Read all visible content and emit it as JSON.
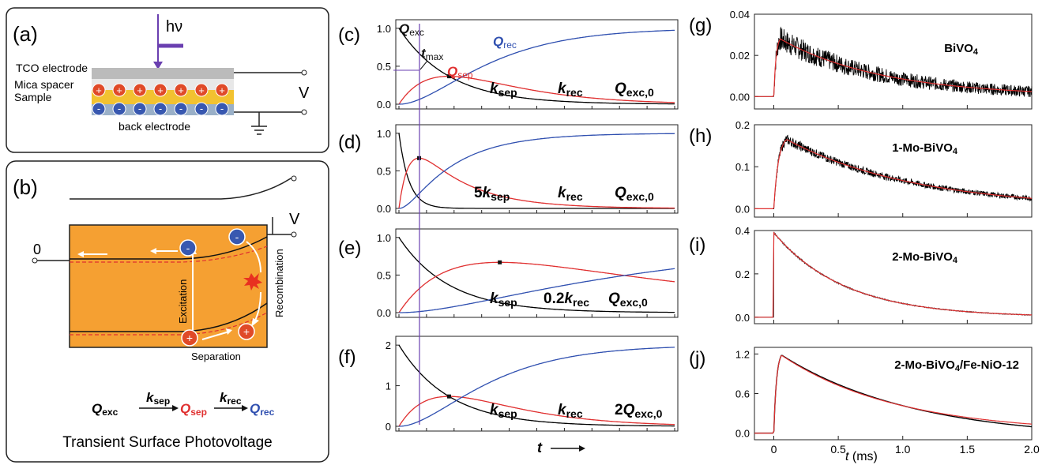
{
  "panel_a": {
    "label": "(a)",
    "hv": "hν",
    "tco": "TCO electrode",
    "mica": "Mica spacer",
    "sample": "Sample",
    "back": "back electrode",
    "v": "V"
  },
  "panel_b": {
    "label": "(b)",
    "v": "V",
    "zero": "0",
    "excitation": "Excitation",
    "recombination": "Recombination",
    "separation": "Separation",
    "scheme": {
      "q_exc": "Q",
      "q_exc_sub": "exc",
      "k_sep": "k",
      "k_sep_sub": "sep",
      "q_sep": "Q",
      "q_sep_sub": "sep",
      "k_rec": "k",
      "k_rec_sub": "rec",
      "q_rec": "Q",
      "q_rec_sub": "rec"
    },
    "caption": "Transient Surface Photovoltage"
  },
  "sim_labels": {
    "c": {
      "label": "(c)",
      "k1": "k",
      "k1s": "sep",
      "k2": "k",
      "k2s": "rec",
      "q": "Q",
      "qs": "exc,0",
      "qexc": "Q",
      "qexc_s": "exc",
      "qrec": "Q",
      "qrec_s": "rec",
      "qsep": "Q",
      "qsep_s": "sep",
      "tmax": "t",
      "tmax_s": "max"
    },
    "d": {
      "label": "(d)",
      "k1": "5k",
      "k1s": "sep",
      "k2": "k",
      "k2s": "rec",
      "q": "Q",
      "qs": "exc,0"
    },
    "e": {
      "label": "(e)",
      "k1": "k",
      "k1s": "sep",
      "k2": "0.2k",
      "k2s": "rec",
      "q": "Q",
      "qs": "exc,0"
    },
    "f": {
      "label": "(f)",
      "k1": "k",
      "k1s": "sep",
      "k2": "k",
      "k2s": "rec",
      "q": "2Q",
      "qs": "exc,0"
    },
    "xlabel": "t"
  },
  "exp_labels": {
    "g": {
      "label": "(g)",
      "sample": "BiVO",
      "sub": "4"
    },
    "h": {
      "label": "(h)",
      "sample": "1-Mo-BiVO",
      "sub": "4"
    },
    "i": {
      "label": "(i)",
      "sample": "2-Mo-BiVO",
      "sub": "4"
    },
    "j": {
      "label": "(j)",
      "sample": "2-Mo-BiVO",
      "sub": "4",
      "suffix": "/Fe-NiO-12"
    },
    "xlabel_t": "t",
    "xlabel_unit": " (ms)"
  },
  "chart_data": [
    {
      "panel": "c",
      "type": "line",
      "ylim": [
        0,
        1.05
      ],
      "yticks": [
        "0.0",
        "0.5",
        "1.0"
      ],
      "params": {
        "k_sep": 1,
        "k_rec": 1,
        "Q_exc0": 1
      },
      "series": [
        {
          "name": "Qexc",
          "color": "#000000"
        },
        {
          "name": "Qsep",
          "color": "#e03030"
        },
        {
          "name": "Qrec",
          "color": "#3050b0"
        }
      ]
    },
    {
      "panel": "d",
      "type": "line",
      "ylim": [
        0,
        1.05
      ],
      "yticks": [
        "0.0",
        "0.5",
        "1.0"
      ],
      "params": {
        "k_sep": 5,
        "k_rec": 1,
        "Q_exc0": 1
      },
      "series": [
        {
          "color": "#000000"
        },
        {
          "color": "#e03030"
        },
        {
          "color": "#3050b0"
        }
      ]
    },
    {
      "panel": "e",
      "type": "line",
      "ylim": [
        0,
        1.05
      ],
      "yticks": [
        "0.0",
        "0.5",
        "1.0"
      ],
      "params": {
        "k_sep": 1,
        "k_rec": 0.2,
        "Q_exc0": 1
      },
      "series": [
        {
          "color": "#000000"
        },
        {
          "color": "#e03030"
        },
        {
          "color": "#3050b0"
        }
      ]
    },
    {
      "panel": "f",
      "type": "line",
      "ylim": [
        0,
        2.1
      ],
      "yticks": [
        "0",
        "1",
        "2"
      ],
      "params": {
        "k_sep": 1,
        "k_rec": 1,
        "Q_exc0": 2
      },
      "series": [
        {
          "color": "#000000"
        },
        {
          "color": "#e03030"
        },
        {
          "color": "#3050b0"
        }
      ]
    },
    {
      "panel": "g",
      "type": "line",
      "xlim": [
        -0.15,
        2.0
      ],
      "ylim": [
        -0.006,
        0.04
      ],
      "yticks": [
        "0.00",
        "0.02",
        "0.04"
      ],
      "ytick_values": [
        0,
        0.02,
        0.04
      ],
      "peak": {
        "x": 0.05,
        "y": 0.028
      },
      "tau": 0.8,
      "noise": 0.006,
      "series": [
        {
          "name": "data",
          "color": "#000000"
        },
        {
          "name": "fit",
          "color": "#e03030"
        }
      ]
    },
    {
      "panel": "h",
      "type": "line",
      "xlim": [
        -0.15,
        2.0
      ],
      "ylim": [
        -0.02,
        0.2
      ],
      "yticks": [
        "0.0",
        "0.1",
        "0.2"
      ],
      "ytick_values": [
        0,
        0.1,
        0.2
      ],
      "peak": {
        "x": 0.1,
        "y": 0.165
      },
      "tau": 1.0,
      "noise": 0.012,
      "series": [
        {
          "name": "data",
          "color": "#000000"
        },
        {
          "name": "fit",
          "color": "#e03030"
        }
      ]
    },
    {
      "panel": "i",
      "type": "line",
      "xlim": [
        -0.15,
        2.0
      ],
      "ylim": [
        -0.03,
        0.4
      ],
      "yticks": [
        "0.0",
        "0.2",
        "0.4"
      ],
      "ytick_values": [
        0,
        0.2,
        0.4
      ],
      "peak": {
        "x": 0.0,
        "y": 0.39
      },
      "tau": 0.55,
      "noise": 0.004,
      "series": [
        {
          "name": "data",
          "color": "#000000"
        },
        {
          "name": "fit",
          "color": "#e03030"
        }
      ]
    },
    {
      "panel": "j",
      "type": "line",
      "xlim": [
        -0.15,
        2.0
      ],
      "ylim": [
        -0.1,
        1.3
      ],
      "yticks": [
        "0.0",
        "0.6",
        "1.2"
      ],
      "ytick_values": [
        0,
        0.6,
        1.2
      ],
      "xticks": [
        "0",
        "0.5",
        "1.0",
        "1.5",
        "2.0"
      ],
      "xtick_values": [
        0,
        0.5,
        1.0,
        1.5,
        2.0
      ],
      "peak": {
        "x": 0.06,
        "y": 1.18
      },
      "tau": 0.9,
      "noise": 0.0,
      "series": [
        {
          "name": "data",
          "color": "#000000"
        },
        {
          "name": "fit",
          "color": "#e03030"
        }
      ]
    }
  ]
}
